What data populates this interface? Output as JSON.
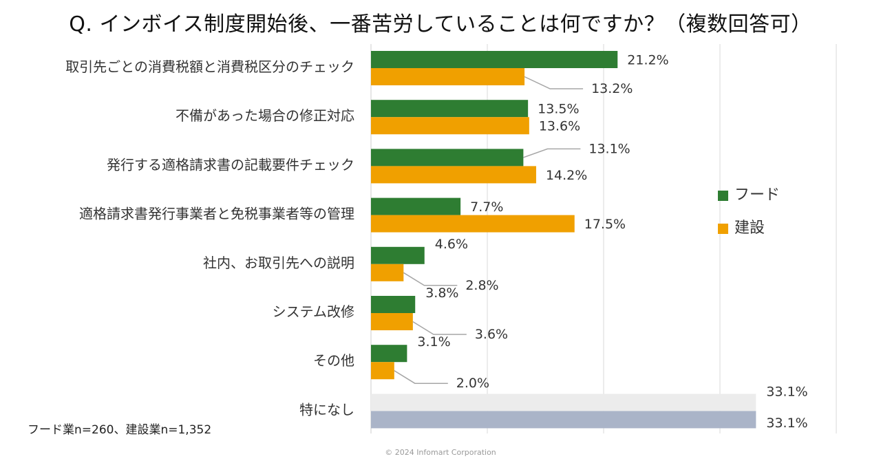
{
  "chart_data": {
    "type": "bar",
    "orientation": "horizontal",
    "title": "Q. インボイス制度開始後、一番苦労していることは何ですか？（複数回答可）",
    "categories": [
      "取引先ごとの消費税額と消費税区分のチェック",
      "不備があった場合の修正対応",
      "発行する適格請求書の記載要件チェック",
      "適格請求書発行事業者と免税事業者等の管理",
      "社内、お取引先への説明",
      "システム改修",
      "その他",
      "特になし"
    ],
    "series": [
      {
        "name": "フード",
        "color": "#2e7d32",
        "values": [
          21.2,
          13.5,
          13.1,
          7.7,
          4.6,
          3.8,
          3.1,
          33.1
        ],
        "labels": [
          "21.2%",
          "13.5%",
          "13.1%",
          "7.7%",
          "4.6%",
          "3.8%",
          "3.1%",
          "33.1%"
        ]
      },
      {
        "name": "建設",
        "color": "#f0a000",
        "values": [
          13.2,
          13.6,
          14.2,
          17.5,
          2.8,
          3.6,
          2.0,
          33.1
        ],
        "labels": [
          "13.2%",
          "13.6%",
          "14.2%",
          "17.5%",
          "2.8%",
          "3.6%",
          "2.0%",
          "33.1%"
        ]
      }
    ],
    "last_category_colors": {
      "フード": "#ececec",
      "建設": "#aab4c8"
    },
    "xlim": [
      0,
      40
    ],
    "grid": true,
    "legend": "right"
  },
  "note": "フード業n=260、建設業n=1,352",
  "copyright": "© 2024 Infomart Corporation"
}
